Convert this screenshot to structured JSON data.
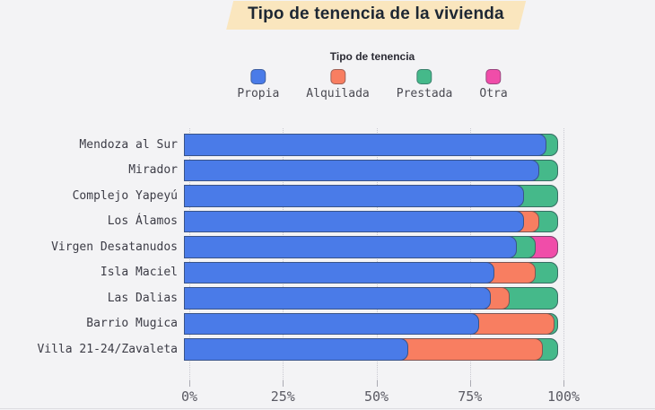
{
  "colors": {
    "background": "#F3F3F5",
    "title_highlight": "#FAE6BE",
    "bar_border": "rgba(47,59,74,0.6)",
    "gridline": "#C9C9D1"
  },
  "chart_data": {
    "type": "bar",
    "orientation": "horizontal-stacked",
    "title": "Tipo de tenencia de la vivienda",
    "legend_title": "Tipo de tenencia",
    "legend_position": "top-center",
    "grid": "vertical-dotted",
    "xlim": [
      0,
      100
    ],
    "x_ticks": [
      {
        "label": "0%",
        "pct": 0
      },
      {
        "label": "25%",
        "pct": 25
      },
      {
        "label": "50%",
        "pct": 50
      },
      {
        "label": "75%",
        "pct": 75
      },
      {
        "label": "100%",
        "pct": 100
      }
    ],
    "categories": [
      "Mendoza al Sur",
      "Mirador",
      "Complejo Yapeyú",
      "Los Álamos",
      "Virgen Desatanudos",
      "Isla Maciel",
      "Las Dalias",
      "Barrio Mugica",
      "Villa 21-24/Zavaleta"
    ],
    "series": [
      {
        "name": "Propia",
        "color": "#4A7BE8",
        "values": [
          97,
          95,
          91,
          91,
          89,
          83,
          82,
          79,
          60
        ]
      },
      {
        "name": "Alquilada",
        "color": "#F87E61",
        "values": [
          0,
          0,
          0,
          4,
          0,
          11,
          5,
          20,
          36
        ]
      },
      {
        "name": "Prestada",
        "color": "#45B98A",
        "values": [
          3,
          5,
          9,
          5,
          5,
          6,
          13,
          1,
          4
        ]
      },
      {
        "name": "Otra",
        "color": "#F04DA9",
        "values": [
          0,
          0,
          0,
          0,
          6,
          0,
          0,
          0,
          0
        ]
      }
    ]
  }
}
